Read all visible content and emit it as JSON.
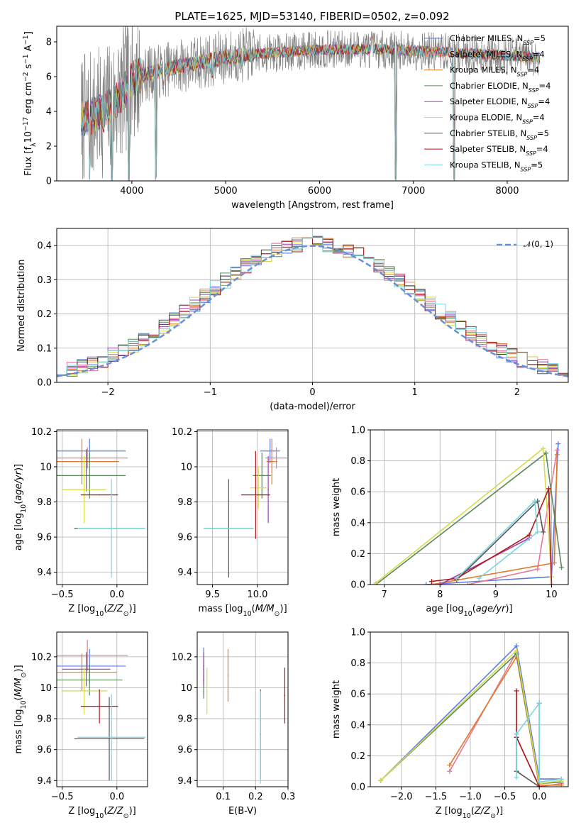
{
  "figure_title": "PLATE=1625, MJD=53140, FIBERID=0502, z=0.092",
  "colors": {
    "Chabrier MILES": "#5b7be0",
    "Salpeter MILES": "#e8799b",
    "Kroupa MILES": "#e07a2c",
    "Chabrier ELODIE": "#5a8a5a",
    "Salpeter ELODIE": "#9b43b0",
    "Kroupa ELODIE": "#d4dc4a",
    "Chabrier STELIB": "#555555",
    "Salpeter STELIB": "#b01818",
    "Kroupa STELIB": "#7cd6dc",
    "data": "#808080",
    "normal": "#6a8fd8"
  },
  "legend": {
    "entries": [
      {
        "name": "Chabrier MILES",
        "nssp": "5"
      },
      {
        "name": "Salpeter MILES",
        "nssp": "4"
      },
      {
        "name": "Kroupa MILES",
        "nssp": "4"
      },
      {
        "name": "Chabrier ELODIE",
        "nssp": "4"
      },
      {
        "name": "Salpeter ELODIE",
        "nssp": "4"
      },
      {
        "name": "Kroupa ELODIE",
        "nssp": "4"
      },
      {
        "name": "Chabrier STELIB",
        "nssp": "5"
      },
      {
        "name": "Salpeter STELIB",
        "nssp": "4"
      },
      {
        "name": "Kroupa STELIB",
        "nssp": "5"
      }
    ],
    "nssp_prefix": ", N",
    "nssp_sub": "SSP",
    "nssp_eq": "="
  },
  "chart_data": [
    {
      "id": "spectrum",
      "type": "line",
      "xlabel": "wavelength [Angstrom, rest frame]",
      "ylabel_parts": [
        "Flux [f",
        "λ",
        "10",
        "−17",
        " erg cm",
        "−2",
        " s",
        "−1",
        " A",
        "−1",
        "]"
      ],
      "xlim": [
        3200,
        8650
      ],
      "ylim": [
        0,
        8.9
      ],
      "xticks": [
        4000,
        5000,
        6000,
        7000,
        8000
      ],
      "yticks": [
        0,
        2,
        4,
        6,
        8
      ],
      "grid": false,
      "legend_position": "top-right",
      "continuum_profile": {
        "x": [
          3450,
          3700,
          3900,
          4000,
          4200,
          4500,
          4800,
          5000,
          5300,
          5600,
          6000,
          6500,
          7000,
          7400,
          8000,
          8350
        ],
        "y": [
          3.5,
          4.0,
          5.0,
          5.9,
          6.2,
          6.6,
          6.9,
          7.1,
          7.3,
          7.4,
          7.55,
          7.6,
          7.5,
          7.4,
          7.2,
          7.1
        ]
      },
      "features": [
        {
          "x": 3550,
          "y": 0
        },
        {
          "x": 3700,
          "y": 2.8
        },
        {
          "x": 3790,
          "y": 0
        },
        {
          "x": 3970,
          "y": 0
        },
        {
          "x": 4260,
          "y": 0
        },
        {
          "x": 4340,
          "y": 5.4
        },
        {
          "x": 4862,
          "y": 5.9
        },
        {
          "x": 5175,
          "y": 6.4
        },
        {
          "x": 6563,
          "y": 8.2
        },
        {
          "x": 6810,
          "y": 0
        },
        {
          "x": 7430,
          "y": 0
        }
      ]
    },
    {
      "id": "residual",
      "type": "step",
      "xlabel": "(data-model)/error",
      "ylabel": "Normed distribution",
      "xlim": [
        -2.5,
        2.5
      ],
      "ylim": [
        0,
        0.45
      ],
      "xticks": [
        -2,
        -1,
        0,
        1,
        2
      ],
      "xtick_labels": [
        "−2",
        "−1",
        "0",
        "1",
        "2"
      ],
      "yticks": [
        0.0,
        0.1,
        0.2,
        0.3,
        0.4
      ],
      "ytick_labels": [
        "0.0",
        "0.1",
        "0.2",
        "0.3",
        "0.4"
      ],
      "grid": true,
      "legend": "𝒩(0, 1)",
      "legend_position": "top-right",
      "bin_width": 0.1
    },
    {
      "id": "age_vs_Z",
      "type": "errorbar",
      "xlabel": "Z [log10(Z/Z⊙)]",
      "ylabel": "age  [log10(age/yr)]",
      "xlim": [
        -0.55,
        0.28
      ],
      "ylim": [
        9.33,
        10.21
      ],
      "xticks": [
        -0.5,
        0.0
      ],
      "xtick_labels": [
        "−0.5",
        "0.0"
      ],
      "yticks": [
        9.4,
        9.6,
        9.8,
        10.0,
        10.2
      ],
      "grid": true,
      "points": [
        {
          "series": "Chabrier MILES",
          "x": -0.25,
          "xerr": 0.33,
          "y": 10.09,
          "yerr": 0.07
        },
        {
          "series": "Salpeter MILES",
          "x": -0.27,
          "xerr": 0.37,
          "y": 10.05,
          "yerr": 0.06
        },
        {
          "series": "Kroupa MILES",
          "x": -0.32,
          "xerr": 0.34,
          "y": 10.03,
          "yerr": 0.13
        },
        {
          "series": "Chabrier ELODIE",
          "x": -0.25,
          "xerr": 0.33,
          "y": 9.95,
          "yerr": 0.13
        },
        {
          "series": "Salpeter ELODIE",
          "x": -0.28,
          "xerr": 0.0,
          "y": 9.98,
          "yerr": 0.12
        },
        {
          "series": "Kroupa ELODIE",
          "x": -0.3,
          "xerr": 0.2,
          "y": 9.87,
          "yerr": 0.19
        },
        {
          "series": "Chabrier STELIB",
          "x": -0.07,
          "xerr": 0.32,
          "y": 9.65,
          "yerr": 0.0
        },
        {
          "series": "Salpeter STELIB",
          "x": -0.16,
          "xerr": 0.17,
          "y": 9.84,
          "yerr": 0.0
        },
        {
          "series": "Kroupa STELIB",
          "x": -0.05,
          "xerr": 0.31,
          "y": 9.65,
          "yerr": 0.28
        }
      ]
    },
    {
      "id": "age_vs_mass",
      "type": "errorbar",
      "xlabel": "mass [log10(M/M⊙)]",
      "xlim": [
        9.33,
        10.34
      ],
      "ylim": [
        9.33,
        10.21
      ],
      "xticks": [
        9.5,
        10.0
      ],
      "xtick_labels": [
        "9.5",
        "10.0"
      ],
      "yticks": [
        9.4,
        9.6,
        9.8,
        10.0,
        10.2
      ],
      "grid": true,
      "points": [
        {
          "series": "Chabrier MILES",
          "x": 10.14,
          "xerr": 0.11,
          "y": 10.09,
          "yerr": 0.07
        },
        {
          "series": "Salpeter MILES",
          "x": 10.21,
          "xerr": 0.12,
          "y": 10.05,
          "yerr": 0.06
        },
        {
          "series": "Kroupa MILES",
          "x": 10.16,
          "xerr": 0.06,
          "y": 10.03,
          "yerr": 0.13
        },
        {
          "series": "Chabrier ELODIE",
          "x": 10.05,
          "xerr": 0.1,
          "y": 9.95,
          "yerr": 0.13
        },
        {
          "series": "Salpeter ELODIE",
          "x": 10.12,
          "xerr": 0.0,
          "y": 9.87,
          "yerr": 0.19
        },
        {
          "series": "Kroupa ELODIE",
          "x": 10.01,
          "xerr": 0.09,
          "y": 9.88,
          "yerr": 0.12
        },
        {
          "series": "Chabrier STELIB",
          "x": 9.68,
          "xerr": 0.27,
          "y": 9.65,
          "yerr": 0.28
        },
        {
          "series": "Salpeter STELIB",
          "x": 9.98,
          "xerr": 0.16,
          "y": 9.84,
          "yerr": 0.25
        },
        {
          "series": "Kroupa STELIB",
          "x": 9.68,
          "xerr": 0.28,
          "y": 9.65,
          "yerr": 0.0
        }
      ]
    },
    {
      "id": "weight_vs_age",
      "type": "line",
      "xlabel": "age  [log10(age/yr)]",
      "ylabel": "mass weight",
      "xlim": [
        6.75,
        10.3
      ],
      "ylim": [
        0,
        1.0
      ],
      "xticks": [
        7,
        8,
        9,
        10
      ],
      "yticks": [
        0.0,
        0.2,
        0.4,
        0.6,
        0.8,
        1.0
      ],
      "ytick_labels": [
        "0.0",
        "0.2",
        "0.4",
        "0.6",
        "0.8",
        "1.0"
      ],
      "grid": true,
      "series": [
        {
          "name": "Chabrier MILES",
          "x": [
            7.75,
            10.0,
            10.12
          ],
          "y": [
            0.0,
            0.05,
            0.91
          ]
        },
        {
          "name": "Salpeter MILES",
          "x": [
            8.5,
            9.75,
            10.1
          ],
          "y": [
            0.0,
            0.1,
            0.87
          ]
        },
        {
          "name": "Kroupa MILES",
          "x": [
            7.85,
            10.05,
            10.1
          ],
          "y": [
            0.0,
            0.14,
            0.84
          ]
        },
        {
          "name": "Chabrier ELODIE",
          "x": [
            6.85,
            9.9,
            10.18
          ],
          "y": [
            0.0,
            0.85,
            0.11
          ]
        },
        {
          "name": "Salpeter ELODIE",
          "x": [
            8.0,
            9.6
          ],
          "y": [
            0.0,
            0.3
          ]
        },
        {
          "name": "Kroupa ELODIE",
          "x": [
            6.85,
            9.85,
            10.0
          ],
          "y": [
            0.01,
            0.88,
            0.05
          ]
        },
        {
          "name": "Chabrier STELIB",
          "x": [
            8.3,
            9.75,
            9.85
          ],
          "y": [
            0.03,
            0.54,
            0.34
          ]
        },
        {
          "name": "Salpeter STELIB",
          "x": [
            7.85,
            8.3,
            9.6,
            9.95,
            10.0
          ],
          "y": [
            0.02,
            0.04,
            0.32,
            0.62,
            0.0
          ]
        },
        {
          "name": "Kroupa STELIB",
          "x": [
            8.3,
            9.7,
            9.75,
            8.7
          ],
          "y": [
            0.04,
            0.54,
            0.34,
            0.04
          ]
        }
      ]
    },
    {
      "id": "mass_vs_Z",
      "type": "errorbar",
      "xlabel": "Z [log10(Z/Z⊙)]",
      "ylabel": "mass [log10(M/M⊙)]",
      "xlim": [
        -0.55,
        0.28
      ],
      "ylim": [
        9.36,
        10.36
      ],
      "xticks": [
        -0.5,
        0.0
      ],
      "xtick_labels": [
        "−0.5",
        "0.0"
      ],
      "yticks": [
        9.4,
        9.6,
        9.8,
        10.0,
        10.2
      ],
      "grid": true,
      "points": [
        {
          "series": "Chabrier MILES",
          "x": -0.25,
          "xerr": 0.33,
          "y": 10.14,
          "yerr": 0.11
        },
        {
          "series": "Salpeter MILES",
          "x": -0.27,
          "xerr": 0.37,
          "y": 10.21,
          "yerr": 0.1
        },
        {
          "series": "Kroupa MILES",
          "x": -0.32,
          "xerr": 0.32,
          "y": 10.1,
          "yerr": 0.12
        },
        {
          "series": "Chabrier ELODIE",
          "x": -0.25,
          "xerr": 0.3,
          "y": 10.05,
          "yerr": 0.1
        },
        {
          "series": "Salpeter ELODIE",
          "x": -0.28,
          "xerr": 0.22,
          "y": 10.12,
          "yerr": 0.11
        },
        {
          "series": "Kroupa ELODIE",
          "x": -0.3,
          "xerr": 0.21,
          "y": 9.98,
          "yerr": 0.15
        },
        {
          "series": "Chabrier STELIB",
          "x": -0.07,
          "xerr": 0.32,
          "y": 9.67,
          "yerr": 0.27
        },
        {
          "series": "Salpeter STELIB",
          "x": -0.16,
          "xerr": 0.17,
          "y": 9.88,
          "yerr": 0.11
        },
        {
          "series": "Kroupa STELIB",
          "x": -0.05,
          "xerr": 0.31,
          "y": 9.68,
          "yerr": 0.28
        }
      ]
    },
    {
      "id": "mass_vs_ebv",
      "type": "errorbar",
      "xlabel": "E(B-V)",
      "xlim": [
        0.02,
        0.3
      ],
      "ylim": [
        9.36,
        10.36
      ],
      "xticks": [
        0.1,
        0.2,
        0.3
      ],
      "xtick_labels": [
        "0.1",
        "0.2",
        "0.3"
      ],
      "yticks": [
        9.4,
        9.6,
        9.8,
        10.0,
        10.2
      ],
      "grid": true,
      "points": [
        {
          "series": "Chabrier MILES",
          "x": 0.04,
          "y": 10.14,
          "yerr": 0.12
        },
        {
          "series": "Salpeter MILES",
          "x": 0.04,
          "y": 10.08,
          "yerr": 0.12
        },
        {
          "series": "Kroupa MILES",
          "x": 0.115,
          "y": 10.08,
          "yerr": 0.17
        },
        {
          "series": "Chabrier ELODIE",
          "x": 0.04,
          "y": 10.05,
          "yerr": 0.12
        },
        {
          "series": "Salpeter ELODIE",
          "x": 0.04,
          "y": 10.12,
          "yerr": 0.11
        },
        {
          "series": "Kroupa ELODIE",
          "x": 0.05,
          "y": 9.98,
          "yerr": 0.15
        },
        {
          "series": "Chabrier STELIB",
          "x": 0.215,
          "y": 9.7,
          "yerr": 0.29
        },
        {
          "series": "Salpeter STELIB",
          "x": 0.29,
          "y": 9.95,
          "yerr": 0.18
        },
        {
          "series": "Kroupa STELIB",
          "x": 0.215,
          "y": 9.68,
          "yerr": 0.3
        }
      ]
    },
    {
      "id": "weight_vs_Z",
      "type": "line",
      "xlabel": "Z [log10(Z/Z⊙)]",
      "ylabel": "mass weight",
      "xlim": [
        -2.45,
        0.42
      ],
      "ylim": [
        0,
        1.0
      ],
      "xticks": [
        -2.0,
        -1.5,
        -1.0,
        -0.5,
        0.0
      ],
      "xtick_labels": [
        "−2.0",
        "−1.5",
        "−1.0",
        "−0.5",
        "0.0"
      ],
      "yticks": [
        0.0,
        0.2,
        0.4,
        0.6,
        0.8,
        1.0
      ],
      "ytick_labels": [
        "0.0",
        "0.2",
        "0.4",
        "0.6",
        "0.8",
        "1.0"
      ],
      "grid": true,
      "series": [
        {
          "name": "Chabrier MILES",
          "x": [
            -2.3,
            -0.33,
            0.0,
            0.32
          ],
          "y": [
            0.04,
            0.91,
            0.05,
            0.05
          ]
        },
        {
          "name": "Salpeter MILES",
          "x": [
            -1.3,
            -0.33,
            0.0,
            0.32
          ],
          "y": [
            0.1,
            0.87,
            0.0,
            0.02
          ]
        },
        {
          "name": "Kroupa MILES",
          "x": [
            -1.3,
            -0.33,
            0.0,
            0.32
          ],
          "y": [
            0.14,
            0.84,
            0.01,
            0.01
          ]
        },
        {
          "name": "Chabrier ELODIE",
          "x": [
            -2.3,
            -0.33,
            0.0,
            0.32
          ],
          "y": [
            0.04,
            0.86,
            0.02,
            0.03
          ]
        },
        {
          "name": "Salpeter ELODIE",
          "x": [
            -0.33,
            0.0
          ],
          "y": [
            0.32,
            0.0
          ]
        },
        {
          "name": "Kroupa ELODIE",
          "x": [
            -2.3,
            -0.33,
            0.0,
            0.32
          ],
          "y": [
            0.04,
            0.88,
            0.02,
            0.04
          ]
        },
        {
          "name": "Chabrier STELIB",
          "x": [
            -0.33,
            -0.33,
            0.0,
            0.0
          ],
          "y": [
            0.34,
            0.1,
            0.0,
            0.54
          ]
        },
        {
          "name": "Salpeter STELIB",
          "x": [
            -0.33,
            -0.33,
            0.0
          ],
          "y": [
            0.62,
            0.32,
            0.0
          ]
        },
        {
          "name": "Kroupa STELIB",
          "x": [
            -0.33,
            -0.33,
            0.0,
            0.0,
            0.32
          ],
          "y": [
            0.06,
            0.34,
            0.54,
            0.03,
            0.05
          ]
        }
      ]
    }
  ]
}
